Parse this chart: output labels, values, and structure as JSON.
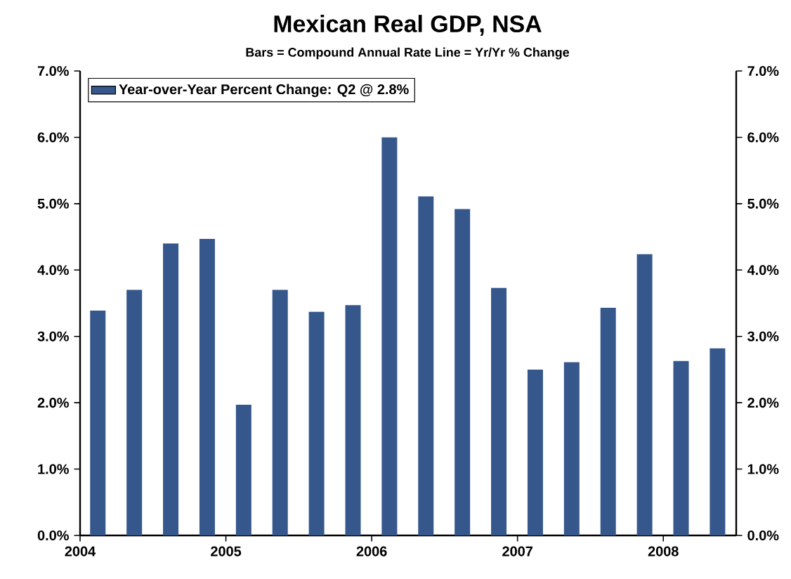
{
  "chart_data": {
    "type": "bar",
    "title": "Mexican Real GDP, NSA",
    "subtitle": "Bars = Compound Annual Rate      Line = Yr/Yr % Change",
    "x": [
      "2004-02-15",
      "2004-05-15",
      "2004-08-15",
      "2004-11-15",
      "2005-02-15",
      "2005-05-15",
      "2005-08-15",
      "2005-11-15",
      "2006-02-15",
      "2006-05-15",
      "2006-08-15",
      "2006-11-15",
      "2007-02-15",
      "2007-05-15",
      "2007-08-15",
      "2007-11-15",
      "2008-02-15",
      "2008-05-15"
    ],
    "series": [
      {
        "name": "Year-over-Year Percent Change: Q2 @ 2.8%",
        "color": "#36578c",
        "values": [
          3.39,
          3.7,
          4.4,
          4.47,
          1.97,
          3.7,
          3.37,
          3.47,
          6.0,
          5.11,
          4.92,
          3.73,
          2.5,
          2.61,
          3.43,
          4.24,
          2.63,
          2.82
        ]
      }
    ],
    "xlim": [
      "2004",
      "2008-07"
    ],
    "xticks": [
      "2004",
      "2005",
      "2006",
      "2007",
      "2008"
    ],
    "ylim": [
      0,
      7
    ],
    "yticks": [
      {
        "value": 0,
        "label": "0.0%"
      },
      {
        "value": 1,
        "label": "1.0%"
      },
      {
        "value": 2,
        "label": "2.0%"
      },
      {
        "value": 3,
        "label": "3.0%"
      },
      {
        "value": 4,
        "label": "4.0%"
      },
      {
        "value": 5,
        "label": "5.0%"
      },
      {
        "value": 6,
        "label": "6.0%"
      },
      {
        "value": 7,
        "label": "7.0%"
      }
    ],
    "y2lim": [
      0,
      7
    ],
    "y2ticks": [
      {
        "value": 0,
        "label": "0.0%"
      },
      {
        "value": 1,
        "label": "1.0%"
      },
      {
        "value": 2,
        "label": "2.0%"
      },
      {
        "value": 3,
        "label": "3.0%"
      },
      {
        "value": 4,
        "label": "4.0%"
      },
      {
        "value": 5,
        "label": "5.0%"
      },
      {
        "value": 6,
        "label": "6.0%"
      },
      {
        "value": 7,
        "label": "7.0%"
      }
    ],
    "grid": false,
    "legend": "top left"
  }
}
